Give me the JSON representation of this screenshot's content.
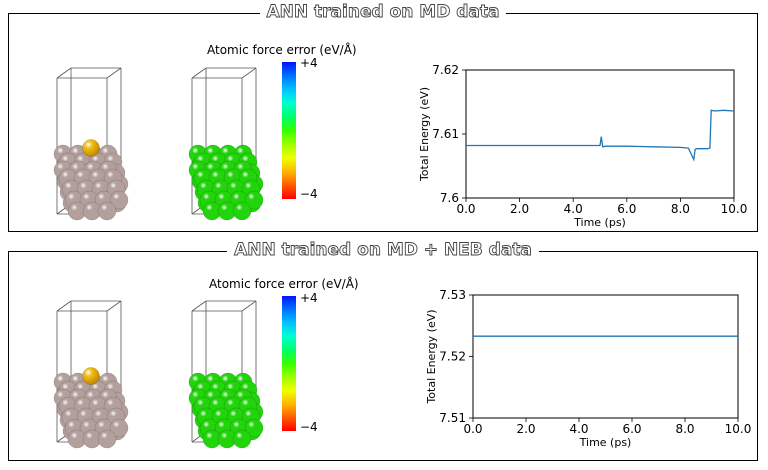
{
  "panels": [
    {
      "title": "ANN trained on MD data",
      "colorbar": {
        "label": "Atomic force error (eV/Å)",
        "max_label": "+4",
        "min_label": "−4",
        "colors": [
          "#0015ff",
          "#0072ff",
          "#00c3ff",
          "#00ffd0",
          "#00ff6a",
          "#36ff00",
          "#9cff00",
          "#f0ff00",
          "#ffb600",
          "#ff5a00",
          "#ff0000"
        ]
      },
      "structures": [
        {
          "name": "slab-with-adatom",
          "atom_color": "#b3a09c",
          "adatom_color": "#f5c018"
        },
        {
          "name": "slab-force-error",
          "atom_color": "#22d40c"
        }
      ]
    },
    {
      "title": "ANN trained on MD + NEB data",
      "colorbar": {
        "label": "Atomic force error (eV/Å)",
        "max_label": "+4",
        "min_label": "−4",
        "colors": [
          "#0015ff",
          "#0072ff",
          "#00c3ff",
          "#00ffd0",
          "#00ff6a",
          "#36ff00",
          "#9cff00",
          "#f0ff00",
          "#ffb600",
          "#ff5a00",
          "#ff0000"
        ]
      },
      "structures": [
        {
          "name": "slab-with-adatom",
          "atom_color": "#b3a09c",
          "adatom_color": "#f5c018"
        },
        {
          "name": "slab-force-error",
          "atom_color": "#22d40c"
        }
      ]
    }
  ],
  "chart_data": [
    {
      "type": "line",
      "xlabel": "Time (ps)",
      "ylabel": "Total Energy (eV)",
      "xlim": [
        0,
        10
      ],
      "ylim": [
        7.6,
        7.62
      ],
      "xticks": [
        "0.0",
        "2.0",
        "4.0",
        "6.0",
        "8.0",
        "10.0"
      ],
      "yticks": [
        "7.6",
        "7.61",
        "7.62"
      ],
      "line_color": "#1f77b4",
      "series": [
        {
          "x": [
            0,
            1,
            2,
            3,
            4,
            5.0,
            5.05,
            5.1,
            5.2,
            6,
            7,
            8,
            8.3,
            8.5,
            8.55,
            8.6,
            9.0,
            9.1,
            9.15,
            9.3,
            9.6,
            10.0
          ],
          "y": [
            7.6082,
            7.6082,
            7.6082,
            7.6082,
            7.6082,
            7.6082,
            7.6096,
            7.608,
            7.6081,
            7.6081,
            7.608,
            7.6079,
            7.6078,
            7.606,
            7.6076,
            7.6077,
            7.6077,
            7.6078,
            7.6137,
            7.6136,
            7.6137,
            7.6136
          ]
        }
      ]
    },
    {
      "type": "line",
      "xlabel": "Time (ps)",
      "ylabel": "Total Energy (eV)",
      "xlim": [
        0,
        10
      ],
      "ylim": [
        7.51,
        7.53
      ],
      "xticks": [
        "0.0",
        "2.0",
        "4.0",
        "6.0",
        "8.0",
        "10.0"
      ],
      "yticks": [
        "7.51",
        "7.52",
        "7.53"
      ],
      "line_color": "#1f77b4",
      "series": [
        {
          "x": [
            0,
            1,
            2,
            3,
            4,
            5,
            6,
            7,
            8,
            9,
            10
          ],
          "y": [
            7.5233,
            7.5233,
            7.5233,
            7.5233,
            7.5233,
            7.5233,
            7.5233,
            7.5233,
            7.5233,
            7.5233,
            7.5233
          ]
        }
      ]
    }
  ]
}
